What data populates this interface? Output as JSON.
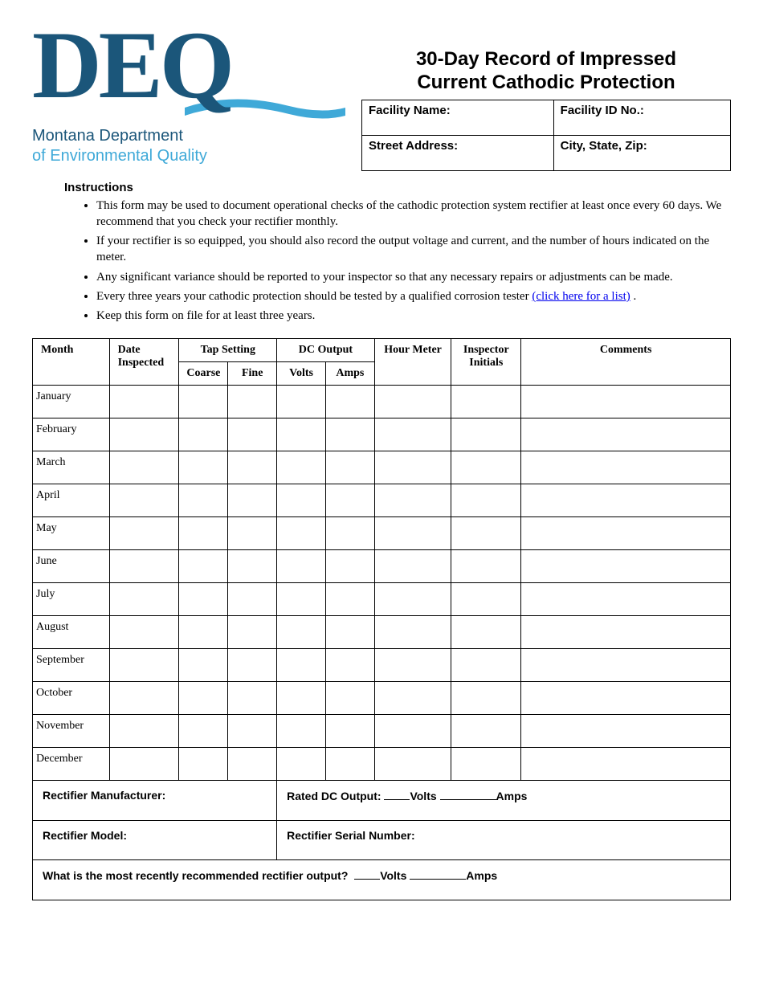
{
  "logo": {
    "acronym": "DEQ",
    "line1": "Montana Department",
    "line2": "of Environmental Quality",
    "primary_color": "#1b567a",
    "accent_color": "#3fa9d8"
  },
  "title": {
    "line1": "30-Day Record of Impressed",
    "line2": "Current Cathodic Protection"
  },
  "facility": {
    "name_label": "Facility Name:",
    "id_label": "Facility ID No.:",
    "street_label": "Street Address:",
    "csz_label": "City, State, Zip:"
  },
  "instructions_heading": "Instructions",
  "instructions": [
    "This form may be used to document operational checks of the cathodic protection system rectifier at least once every 60 days. We recommend that you check your rectifier monthly.",
    "If your rectifier is so equipped, you should also record the output voltage and current, and the number of hours indicated on the meter.",
    "Any significant variance should be reported to your inspector so that any necessary repairs or adjustments can be made.",
    "Every three years your cathodic protection should be tested by a qualified corrosion tester ",
    "Keep this form on file for at least three years."
  ],
  "link_text": "(click here for a list)",
  "table": {
    "headers": {
      "month": "Month",
      "date": "Date Inspected",
      "tap": "Tap Setting",
      "coarse": "Coarse",
      "fine": "Fine",
      "dc": "DC Output",
      "volts": "Volts",
      "amps": "Amps",
      "hour": "Hour Meter",
      "initials": "Inspector Initials",
      "comments": "Comments"
    },
    "months": [
      "January",
      "February",
      "March",
      "April",
      "May",
      "June",
      "July",
      "August",
      "September",
      "October",
      "November",
      "December"
    ]
  },
  "footer": {
    "rect_mfr": "Rectifier Manufacturer:",
    "rated_prefix": "Rated DC Output:",
    "volts": "Volts",
    "amps": "Amps",
    "rect_model": "Rectifier Model:",
    "rect_serial": "Rectifier Serial Number:",
    "recommended": "What is the most recently recommended rectifier output?"
  }
}
